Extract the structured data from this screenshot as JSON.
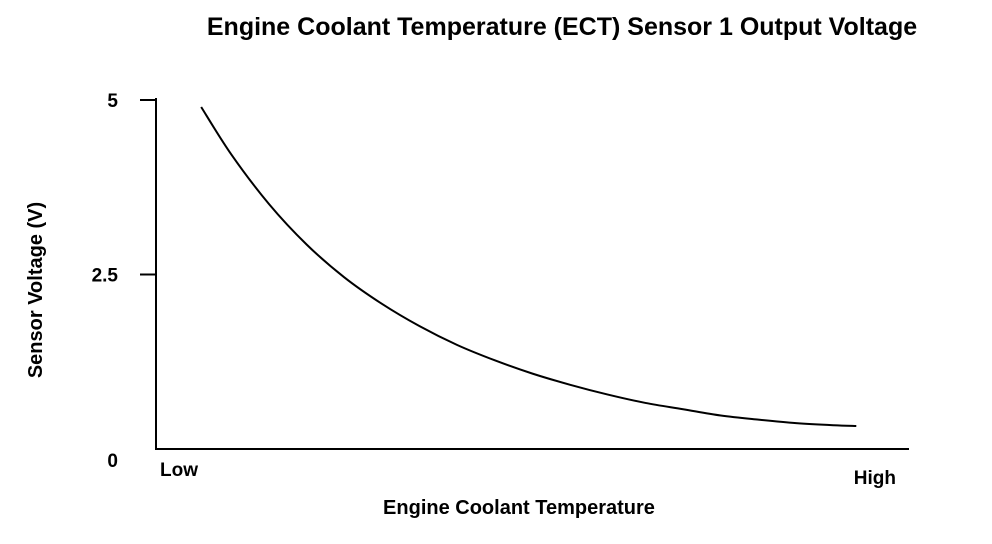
{
  "chart_data": {
    "type": "line",
    "title": "Engine Coolant Temperature (ECT) Sensor 1 Output Voltage",
    "xlabel": "Engine Coolant Temperature",
    "ylabel": "Sensor Voltage (V)",
    "x_tick_labels": {
      "low": "Low",
      "high": "High"
    },
    "y_ticks": [
      {
        "value": 5,
        "label": "5"
      },
      {
        "value": 2.5,
        "label": "2.5"
      },
      {
        "value": 0,
        "label": "0"
      }
    ],
    "xlim": [
      0,
      100
    ],
    "ylim": [
      0,
      5
    ],
    "grid": false,
    "series": [
      {
        "color": "#000000",
        "x": [
          6,
          10,
          15,
          20,
          25,
          30,
          35,
          40,
          45,
          50,
          55,
          60,
          65,
          70,
          75,
          80,
          85,
          90,
          93
        ],
        "y": [
          4.9,
          4.22,
          3.51,
          2.93,
          2.46,
          2.08,
          1.76,
          1.49,
          1.27,
          1.08,
          0.92,
          0.78,
          0.66,
          0.57,
          0.48,
          0.42,
          0.37,
          0.34,
          0.33
        ]
      }
    ]
  }
}
